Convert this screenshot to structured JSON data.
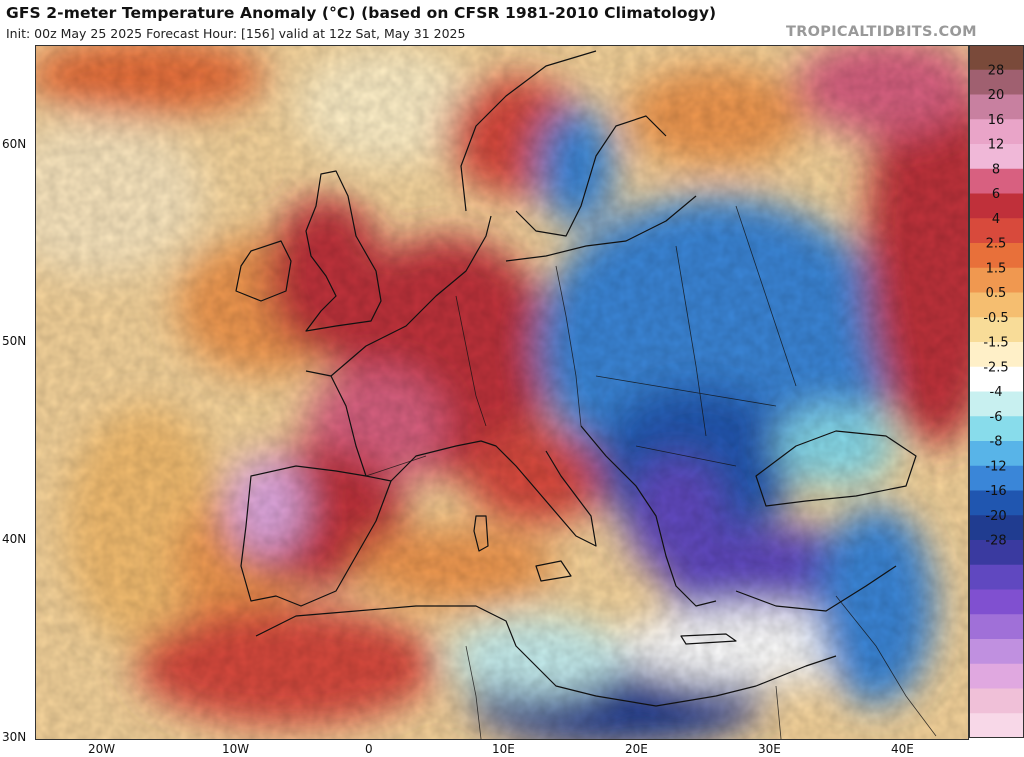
{
  "header": {
    "title": "GFS 2-meter Temperature Anomaly (°C) (based on CFSR 1981-2010 Climatology)",
    "subtitle": "Init: 00z May 25 2025   Forecast Hour: [156]   valid at 12z Sat, May 31 2025",
    "credit": "TROPICALTIDBITS.COM"
  },
  "axes": {
    "lat_labels": [
      "60N",
      "50N",
      "40N",
      "30N"
    ],
    "lon_labels": [
      "20W",
      "10W",
      "0",
      "10E",
      "20E",
      "30E",
      "40E"
    ]
  },
  "colorbar": {
    "labels": [
      "28",
      "20",
      "16",
      "12",
      "8",
      "6",
      "4",
      "2.5",
      "1.5",
      "0.5",
      "-0.5",
      "-1.5",
      "-2.5",
      "-4",
      "-6",
      "-8",
      "-12",
      "-16",
      "-20",
      "-28"
    ],
    "colors": [
      "#7a4a3a",
      "#a06070",
      "#c880a0",
      "#e9a4c8",
      "#f0b8d8",
      "#d86080",
      "#c0303a",
      "#d84a3c",
      "#e8703a",
      "#f09850",
      "#f5be70",
      "#f8dc98",
      "#fff0c8",
      "#ffffff",
      "#c8f0f0",
      "#88dceb",
      "#58b4e8",
      "#3a86d8",
      "#2056b0",
      "#203c90",
      "#3a3aa0",
      "#6048c0",
      "#8050d0",
      "#a070d8",
      "#c090e0",
      "#e0a8e0",
      "#f0c0d8",
      "#f8d8e8"
    ]
  },
  "map_region": {
    "lat_range": [
      30,
      65
    ],
    "lon_range": [
      -25,
      45
    ]
  }
}
